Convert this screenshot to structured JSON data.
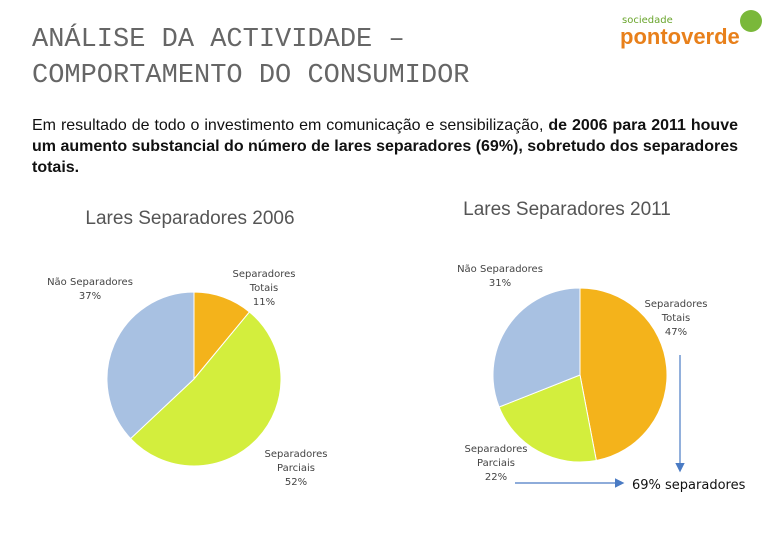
{
  "header": {
    "title_lines": [
      "ANÁLISE DA ACTIVIDADE –",
      "COMPORTAMENTO DO CONSUMIDOR"
    ],
    "logo_small": "sociedade",
    "logo": "pontoverde"
  },
  "intro": {
    "normal": "Em resultado de todo o investimento em comunicação e sensibilização, ",
    "bold": "de 2006 para 2011 houve um aumento substancial do número de lares separadores (69%), sobretudo dos separadores totais."
  },
  "annotation": "69% separadores",
  "chart_data": [
    {
      "type": "pie",
      "title": "Lares Separadores 2006",
      "categories": [
        "Separadores Totais",
        "Separadores Parciais",
        "Não Separadores"
      ],
      "values": [
        11,
        52,
        37
      ],
      "value_labels": [
        "11%",
        "52%",
        "37%"
      ],
      "colors": [
        "#f4b31b",
        "#d3ee3d",
        "#a8c1e2"
      ]
    },
    {
      "type": "pie",
      "title": "Lares Separadores 2011",
      "categories": [
        "Separadores Totais",
        "Separadores Parciais",
        "Não Separadores"
      ],
      "values": [
        47,
        22,
        31
      ],
      "value_labels": [
        "47%",
        "22%",
        "31%"
      ],
      "colors": [
        "#f4b31b",
        "#d3ee3d",
        "#a8c1e2"
      ]
    }
  ]
}
